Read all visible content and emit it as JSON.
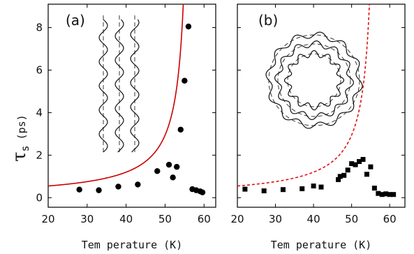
{
  "figure": {
    "ylabel_symbol": "τ",
    "ylabel_subscript": "s",
    "ylabel_unit": "(ps)",
    "xlabel": "Tem perature (K)"
  },
  "chart_data": [
    {
      "type": "scatter",
      "panel_label": "(a)",
      "xlabel": "Tem perature (K)",
      "ylabel": "τs (ps)",
      "xlim": [
        20,
        63
      ],
      "ylim": [
        -0.45,
        9.1
      ],
      "xticks": [
        20,
        30,
        40,
        50,
        60
      ],
      "yticks": [
        0,
        2,
        4,
        6,
        8
      ],
      "marker": "circle",
      "marker_color": "#000000",
      "points": [
        {
          "x": 28.0,
          "y": 0.38
        },
        {
          "x": 33.0,
          "y": 0.35
        },
        {
          "x": 38.0,
          "y": 0.52
        },
        {
          "x": 43.0,
          "y": 0.62
        },
        {
          "x": 48.0,
          "y": 1.25
        },
        {
          "x": 51.0,
          "y": 1.55
        },
        {
          "x": 52.0,
          "y": 0.95
        },
        {
          "x": 53.0,
          "y": 1.45
        },
        {
          "x": 54.0,
          "y": 3.2
        },
        {
          "x": 55.0,
          "y": 5.5
        },
        {
          "x": 56.0,
          "y": 8.05
        },
        {
          "x": 57.0,
          "y": 0.4
        },
        {
          "x": 58.0,
          "y": 0.35
        },
        {
          "x": 59.0,
          "y": 0.3
        },
        {
          "x": 59.6,
          "y": 0.25
        }
      ],
      "fit_curve": {
        "style": "solid",
        "color": "#cc0000",
        "divergence_x": 56.9,
        "low_x_value": 0.55
      }
    },
    {
      "type": "scatter",
      "panel_label": "(b)",
      "xlabel": "Tem perature (K)",
      "xlim": [
        20,
        64
      ],
      "ylim": [
        -0.45,
        9.1
      ],
      "xticks": [
        20,
        30,
        40,
        50,
        60
      ],
      "marker": "square",
      "marker_color": "#000000",
      "points": [
        {
          "x": 22.0,
          "y": 0.4
        },
        {
          "x": 27.0,
          "y": 0.32
        },
        {
          "x": 32.0,
          "y": 0.38
        },
        {
          "x": 37.0,
          "y": 0.42
        },
        {
          "x": 40.0,
          "y": 0.55
        },
        {
          "x": 42.0,
          "y": 0.5
        },
        {
          "x": 46.5,
          "y": 0.85
        },
        {
          "x": 47.0,
          "y": 1.0
        },
        {
          "x": 48.0,
          "y": 1.05
        },
        {
          "x": 49.0,
          "y": 1.3
        },
        {
          "x": 50.0,
          "y": 1.6
        },
        {
          "x": 51.0,
          "y": 1.55
        },
        {
          "x": 52.0,
          "y": 1.7
        },
        {
          "x": 53.0,
          "y": 1.8
        },
        {
          "x": 54.0,
          "y": 1.1
        },
        {
          "x": 55.0,
          "y": 1.45
        },
        {
          "x": 56.0,
          "y": 0.45
        },
        {
          "x": 57.0,
          "y": 0.2
        },
        {
          "x": 58.0,
          "y": 0.15
        },
        {
          "x": 59.0,
          "y": 0.18
        },
        {
          "x": 60.0,
          "y": 0.15
        },
        {
          "x": 61.0,
          "y": 0.15
        }
      ],
      "fit_curve": {
        "style": "dashed",
        "color": "#dd1111",
        "divergence_x": 56.9,
        "low_x_value": 0.55
      }
    }
  ]
}
